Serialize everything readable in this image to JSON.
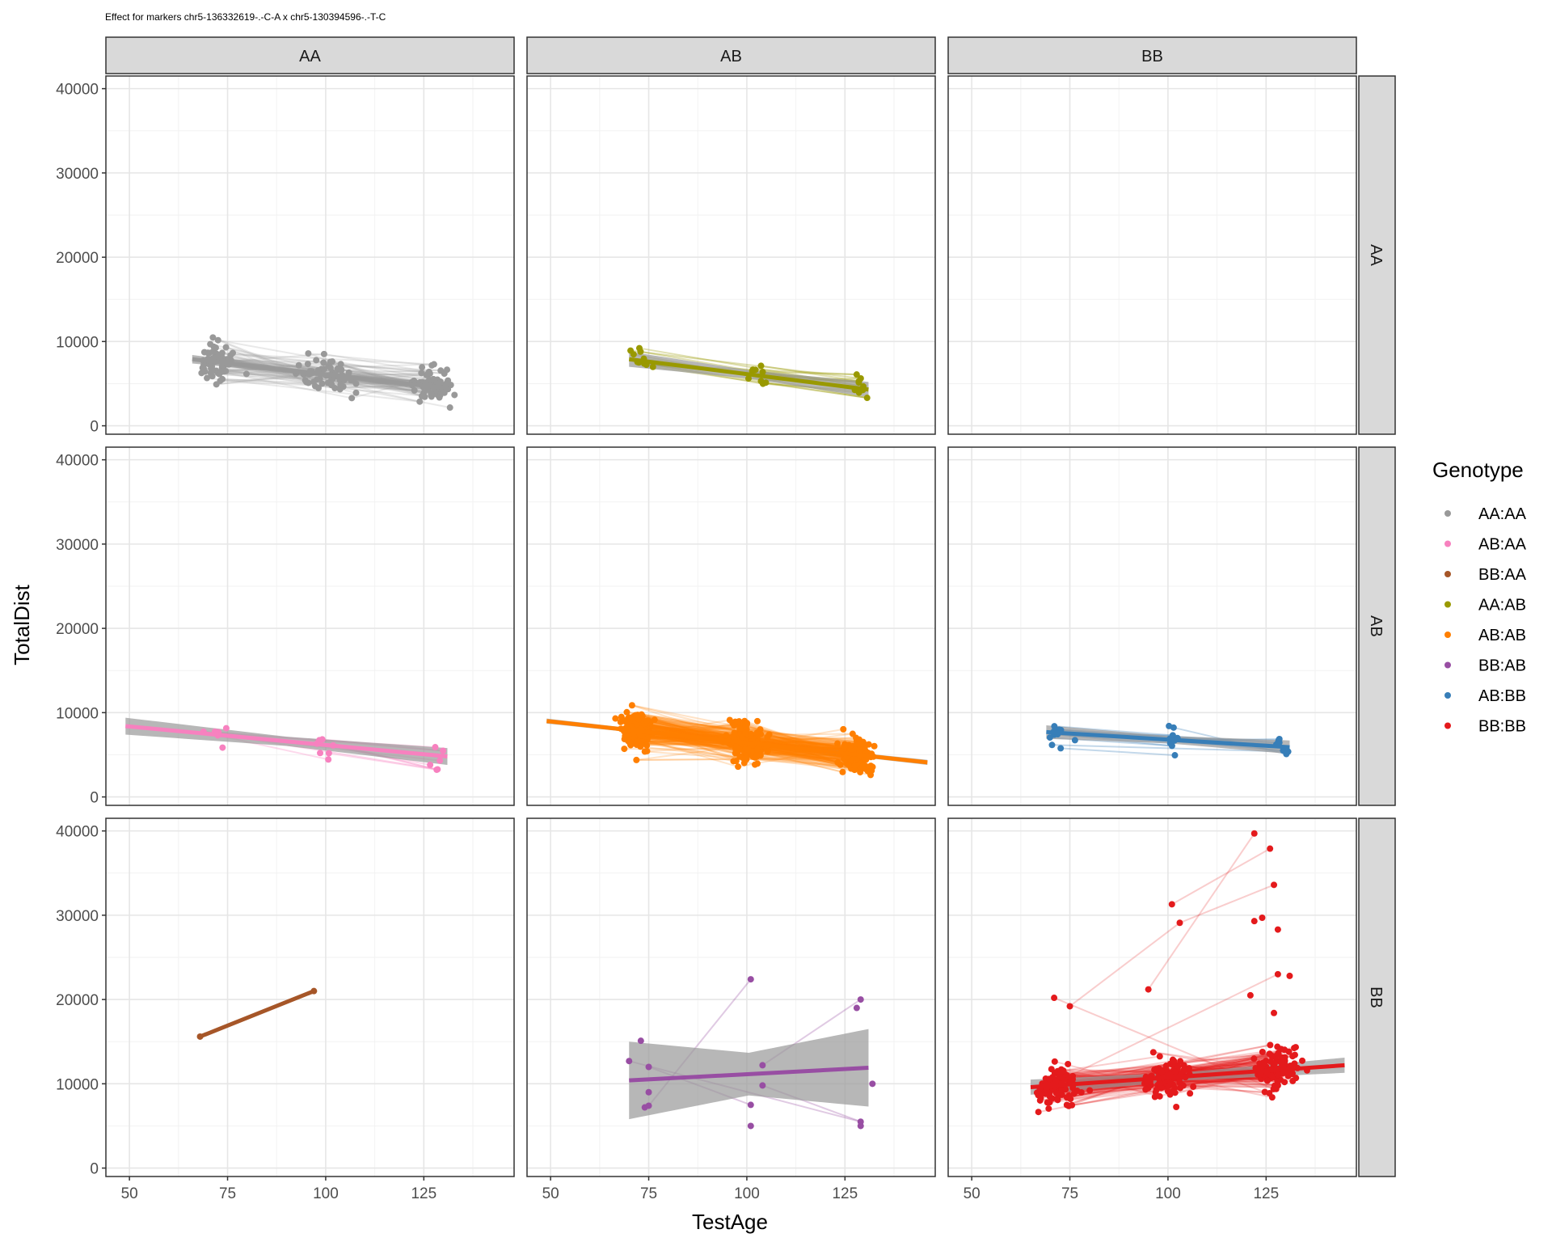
{
  "chart_data": {
    "type": "scatter",
    "title": "Effect for markers chr5-136332619-.-C-A x chr5-130394596-.-T-C",
    "xlabel": "TestAge",
    "ylabel": "TotalDist",
    "xlim": [
      44,
      148
    ],
    "ylim": [
      -1000,
      41500
    ],
    "x_ticks": [
      50,
      75,
      100,
      125
    ],
    "y_ticks": [
      0,
      10000,
      20000,
      30000,
      40000
    ],
    "col_strips": [
      "AA",
      "AB",
      "BB"
    ],
    "row_strips": [
      "AA",
      "AB",
      "BB"
    ],
    "legend": {
      "title": "Genotype",
      "position": "right",
      "entries": [
        {
          "label": "AA:AA",
          "color": "#999999"
        },
        {
          "label": "AB:AA",
          "color": "#F781BF"
        },
        {
          "label": "BB:AA",
          "color": "#A65628"
        },
        {
          "label": "AA:AB",
          "color": "#999900"
        },
        {
          "label": "AB:AB",
          "color": "#FF7F00"
        },
        {
          "label": "BB:AB",
          "color": "#984EA3"
        },
        {
          "label": "AB:BB",
          "color": "#377EB8"
        },
        {
          "label": "BB:BB",
          "color": "#E41A1C"
        }
      ]
    },
    "panels": [
      {
        "row": 0,
        "col": 0,
        "genotype": "AA:AA",
        "color": "#999999",
        "n_points": 190,
        "x_groups": [
          [
            72,
            6
          ],
          [
            100,
            8
          ],
          [
            128,
            6
          ]
        ],
        "y_center": 6400,
        "y_spread": 2200,
        "trend": {
          "x": [
            66,
            130
          ],
          "y": [
            7900,
            4500
          ]
        },
        "band": 500
      },
      {
        "row": 0,
        "col": 1,
        "genotype": "AA:AB",
        "color": "#999900",
        "n_points": 28,
        "x_groups": [
          [
            72,
            3
          ],
          [
            102,
            4
          ],
          [
            129,
            2
          ]
        ],
        "y_center": 6000,
        "y_spread": 1800,
        "trend": {
          "x": [
            70,
            131
          ],
          "y": [
            7900,
            4300
          ]
        },
        "band": 900
      },
      {
        "row": 0,
        "col": 2,
        "genotype": "",
        "color": "#999999",
        "n_points": 0
      },
      {
        "row": 1,
        "col": 0,
        "genotype": "AB:AA",
        "color": "#F781BF",
        "n_points": 20,
        "x_groups": [
          [
            72,
            5
          ],
          [
            100,
            3
          ],
          [
            128,
            3
          ]
        ],
        "y_center": 6500,
        "y_spread": 1900,
        "trend": {
          "x": [
            49,
            131
          ],
          "y": [
            8400,
            4800
          ]
        },
        "band": 1000
      },
      {
        "row": 1,
        "col": 1,
        "genotype": "AB:AB",
        "color": "#FF7F00",
        "n_points": 480,
        "x_groups": [
          [
            72,
            4
          ],
          [
            100,
            5
          ],
          [
            128,
            4
          ]
        ],
        "y_center": 6000,
        "y_spread": 2300,
        "trend": {
          "x": [
            49,
            146
          ],
          "y": [
            9000,
            4100
          ]
        },
        "band": 300
      },
      {
        "row": 1,
        "col": 2,
        "genotype": "AB:BB",
        "color": "#377EB8",
        "n_points": 34,
        "x_groups": [
          [
            72,
            3
          ],
          [
            101,
            2
          ],
          [
            129,
            2
          ]
        ],
        "y_center": 7000,
        "y_spread": 1700,
        "trend": {
          "x": [
            69,
            131
          ],
          "y": [
            7700,
            5900
          ]
        },
        "band": 800
      },
      {
        "row": 2,
        "col": 0,
        "genotype": "BB:AA",
        "color": "#A65628",
        "n_points": 2,
        "points": [
          [
            68,
            15600
          ],
          [
            97,
            21000
          ]
        ],
        "trend": {
          "x": [
            68,
            97
          ],
          "y": [
            15600,
            21000
          ]
        },
        "band": 0
      },
      {
        "row": 2,
        "col": 1,
        "genotype": "BB:AB",
        "color": "#984EA3",
        "n_points": 16,
        "points": [
          [
            70,
            12700
          ],
          [
            73,
            15100
          ],
          [
            74,
            7200
          ],
          [
            75,
            7400
          ],
          [
            75,
            9000
          ],
          [
            75,
            12000
          ],
          [
            101,
            22400
          ],
          [
            101,
            7500
          ],
          [
            101,
            5000
          ],
          [
            104,
            12200
          ],
          [
            104,
            9800
          ],
          [
            129,
            20000
          ],
          [
            128,
            19000
          ],
          [
            129,
            5500
          ],
          [
            129,
            5000
          ],
          [
            132,
            10000
          ]
        ],
        "trend": {
          "x": [
            70,
            131
          ],
          "y": [
            10400,
            11900
          ]
        },
        "band": 4600
      },
      {
        "row": 2,
        "col": 2,
        "genotype": "BB:BB",
        "color": "#E41A1C",
        "n_points": 320,
        "x_groups": [
          [
            72,
            5
          ],
          [
            100,
            6
          ],
          [
            128,
            6
          ]
        ],
        "y_center": 10300,
        "y_spread": 2600,
        "trend": {
          "x": [
            65,
            145
          ],
          "y": [
            9600,
            12200
          ]
        },
        "band": 900
      }
    ],
    "bb_outliers": [
      [
        71,
        20200
      ],
      [
        75,
        19200
      ],
      [
        95,
        21200
      ],
      [
        101,
        31300
      ],
      [
        103,
        29100
      ],
      [
        122,
        39700
      ],
      [
        126,
        37900
      ],
      [
        127,
        33600
      ],
      [
        122,
        29300
      ],
      [
        124,
        29700
      ],
      [
        128,
        28300
      ],
      [
        121,
        20500
      ],
      [
        127,
        18400
      ],
      [
        128,
        23000
      ],
      [
        131,
        22800
      ]
    ]
  }
}
